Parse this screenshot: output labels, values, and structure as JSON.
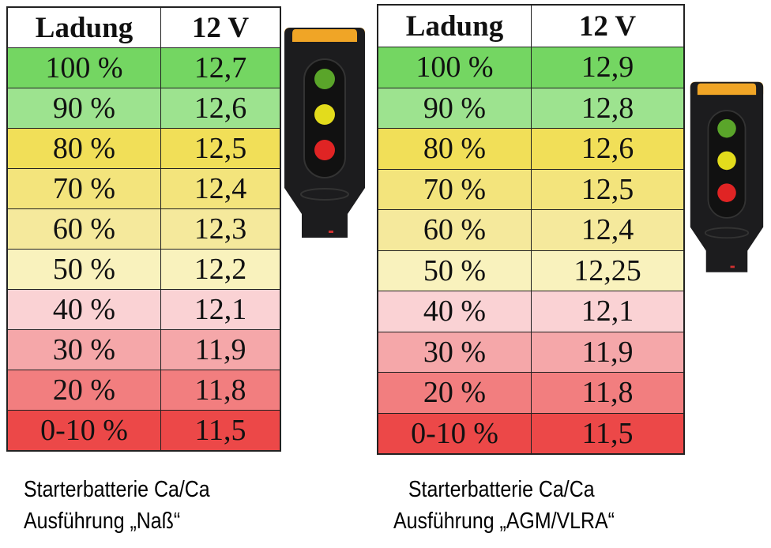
{
  "tables": [
    {
      "header": {
        "charge": "Ladung",
        "voltage": "12 V"
      },
      "rows": [
        {
          "charge": "100 %",
          "voltage": "12,7",
          "color": "#74d662"
        },
        {
          "charge": "90 %",
          "voltage": "12,6",
          "color": "#9de38f"
        },
        {
          "charge": "80 %",
          "voltage": "12,5",
          "color": "#f1df58"
        },
        {
          "charge": "70 %",
          "voltage": "12,4",
          "color": "#f3e47c"
        },
        {
          "charge": "60 %",
          "voltage": "12,3",
          "color": "#f5e99c"
        },
        {
          "charge": "50 %",
          "voltage": "12,2",
          "color": "#f9f2bd"
        },
        {
          "charge": "40 %",
          "voltage": "12,1",
          "color": "#fad2d4"
        },
        {
          "charge": "30 %",
          "voltage": "11,9",
          "color": "#f5a7a9"
        },
        {
          "charge": "20 %",
          "voltage": "11,8",
          "color": "#f27e7f"
        },
        {
          "charge": "0-10 %",
          "voltage": "11,5",
          "color": "#ec4848"
        }
      ],
      "caption": {
        "line1": "Starterbatterie Ca/Ca",
        "line2": "Ausführung „Naß“"
      }
    },
    {
      "header": {
        "charge": "Ladung",
        "voltage": "12 V"
      },
      "rows": [
        {
          "charge": "100 %",
          "voltage": "12,9",
          "color": "#74d662"
        },
        {
          "charge": "90 %",
          "voltage": "12,8",
          "color": "#9de38f"
        },
        {
          "charge": "80 %",
          "voltage": "12,6",
          "color": "#f1df58"
        },
        {
          "charge": "70 %",
          "voltage": "12,5",
          "color": "#f3e47c"
        },
        {
          "charge": "60 %",
          "voltage": "12,4",
          "color": "#f5e99c"
        },
        {
          "charge": "50 %",
          "voltage": "12,25",
          "color": "#f9f2bd"
        },
        {
          "charge": "40 %",
          "voltage": "12,1",
          "color": "#fad2d4"
        },
        {
          "charge": "30 %",
          "voltage": "11,9",
          "color": "#f5a7a9"
        },
        {
          "charge": "20 %",
          "voltage": "11,8",
          "color": "#f27e7f"
        },
        {
          "charge": "0-10 %",
          "voltage": "11,5",
          "color": "#ec4848"
        }
      ],
      "caption": {
        "line1": "Starterbatterie Ca/Ca",
        "line2": "Ausführung „AGM/VLRA“"
      }
    }
  ],
  "tester_icon": {
    "name": "battery-tester-led-icon",
    "leds": [
      "#5aa52a",
      "#e3dc1c",
      "#e02424"
    ],
    "cap_color": "#f0a526",
    "body_color": "#1c1c1e"
  },
  "chart_data": {
    "type": "table",
    "title": "",
    "columns": [
      "Ladung",
      "12 V"
    ],
    "categories": [
      "100 %",
      "90 %",
      "80 %",
      "70 %",
      "60 %",
      "50 %",
      "40 %",
      "30 %",
      "20 %",
      "0-10 %"
    ],
    "series": [
      {
        "name": "Starterbatterie Ca/Ca Ausführung „Naß“",
        "values": [
          12.7,
          12.6,
          12.5,
          12.4,
          12.3,
          12.2,
          12.1,
          11.9,
          11.8,
          11.5
        ]
      },
      {
        "name": "Starterbatterie Ca/Ca Ausführung „AGM/VLRA“",
        "values": [
          12.9,
          12.8,
          12.6,
          12.5,
          12.4,
          12.25,
          12.1,
          11.9,
          11.8,
          11.5
        ]
      }
    ],
    "xlabel": "Ladung",
    "ylabel": "12 V"
  }
}
